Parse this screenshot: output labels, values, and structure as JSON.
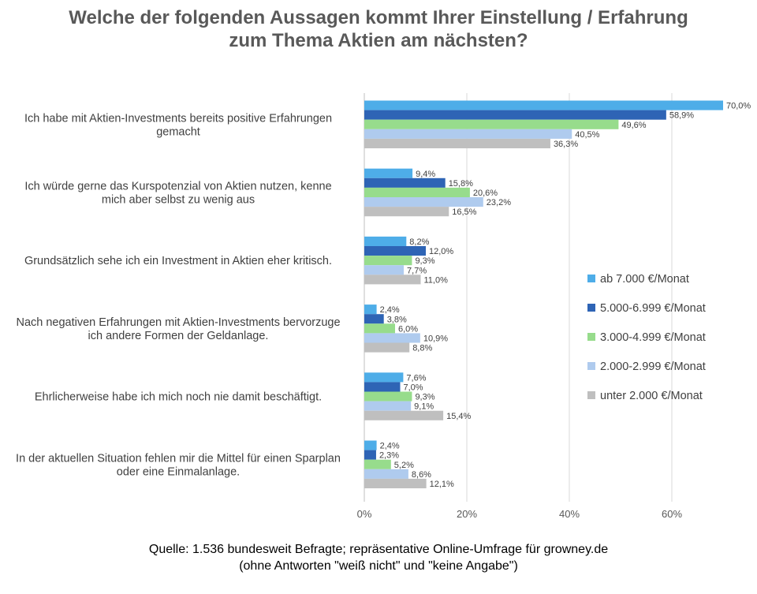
{
  "title": {
    "line1": "Welche der folgenden Aussagen kommt Ihrer Einstellung / Erfahrung",
    "line2": "zum Thema Aktien am nächsten?"
  },
  "source": {
    "line1": "Quelle: 1.536 bundesweit Befragte; repräsentative Online-Umfrage für growney.de",
    "line2": "(ohne Antworten \"weiß nicht\" und \"keine Angabe\")"
  },
  "chart_data": {
    "type": "bar",
    "orientation": "horizontal",
    "title": "Welche der folgenden Aussagen kommt Ihrer Einstellung / Erfahrung zum Thema Aktien am nächsten?",
    "categories": [
      [
        "Ich habe mit Aktien-Investments bereits positive Erfahrungen",
        "gemacht"
      ],
      [
        "Ich würde gerne das Kurspotenzial von Aktien nutzen, kenne",
        "mich aber selbst zu wenig aus"
      ],
      [
        "Grundsätzlich sehe ich ein Investment in Aktien eher kritisch."
      ],
      [
        "Nach negativen Erfahrungen mit Aktien-Investments bervorzuge",
        "ich andere Formen der Geldanlage."
      ],
      [
        "Ehrlicherweise habe ich mich noch nie damit beschäftigt."
      ],
      [
        "In der aktuellen Situation fehlen mir die Mittel für einen Sparplan",
        "oder eine Einmalanlage."
      ]
    ],
    "series": [
      {
        "name": "ab 7.000 €/Monat",
        "color": "#4EADE8",
        "values": [
          70.0,
          9.4,
          8.2,
          2.4,
          7.6,
          2.4
        ],
        "labels": [
          "70,0%",
          "9,4%",
          "8,2%",
          "2,4%",
          "7,6%",
          "2,4%"
        ]
      },
      {
        "name": "5.000-6.999 €/Monat",
        "color": "#2E64B5",
        "values": [
          58.9,
          15.8,
          12.0,
          3.8,
          7.0,
          2.3
        ],
        "labels": [
          "58,9%",
          "15,8%",
          "12,0%",
          "3,8%",
          "7,0%",
          "2,3%"
        ]
      },
      {
        "name": "3.000-4.999 €/Monat",
        "color": "#97DC8C",
        "values": [
          49.6,
          20.6,
          9.3,
          6.0,
          9.3,
          5.2
        ],
        "labels": [
          "49,6%",
          "20,6%",
          "9,3%",
          "6,0%",
          "9,3%",
          "5,2%"
        ]
      },
      {
        "name": "2.000-2.999 €/Monat",
        "color": "#AFCBEE",
        "values": [
          40.5,
          23.2,
          7.7,
          10.9,
          9.1,
          8.6
        ],
        "labels": [
          "40,5%",
          "23,2%",
          "7,7%",
          "10,9%",
          "9,1%",
          "8,6%"
        ]
      },
      {
        "name": "unter 2.000 €/Monat",
        "color": "#BFBFBF",
        "values": [
          36.3,
          16.5,
          11.0,
          8.8,
          15.4,
          12.1
        ],
        "labels": [
          "36,3%",
          "16,5%",
          "11,0%",
          "8,8%",
          "15,4%",
          "12,1%"
        ]
      }
    ],
    "xlim": [
      0,
      70
    ],
    "xticks": [
      0,
      20,
      40,
      60
    ],
    "xtick_labels": [
      "0%",
      "20%",
      "40%",
      "60%"
    ],
    "grid": true,
    "legend_position": "right"
  }
}
